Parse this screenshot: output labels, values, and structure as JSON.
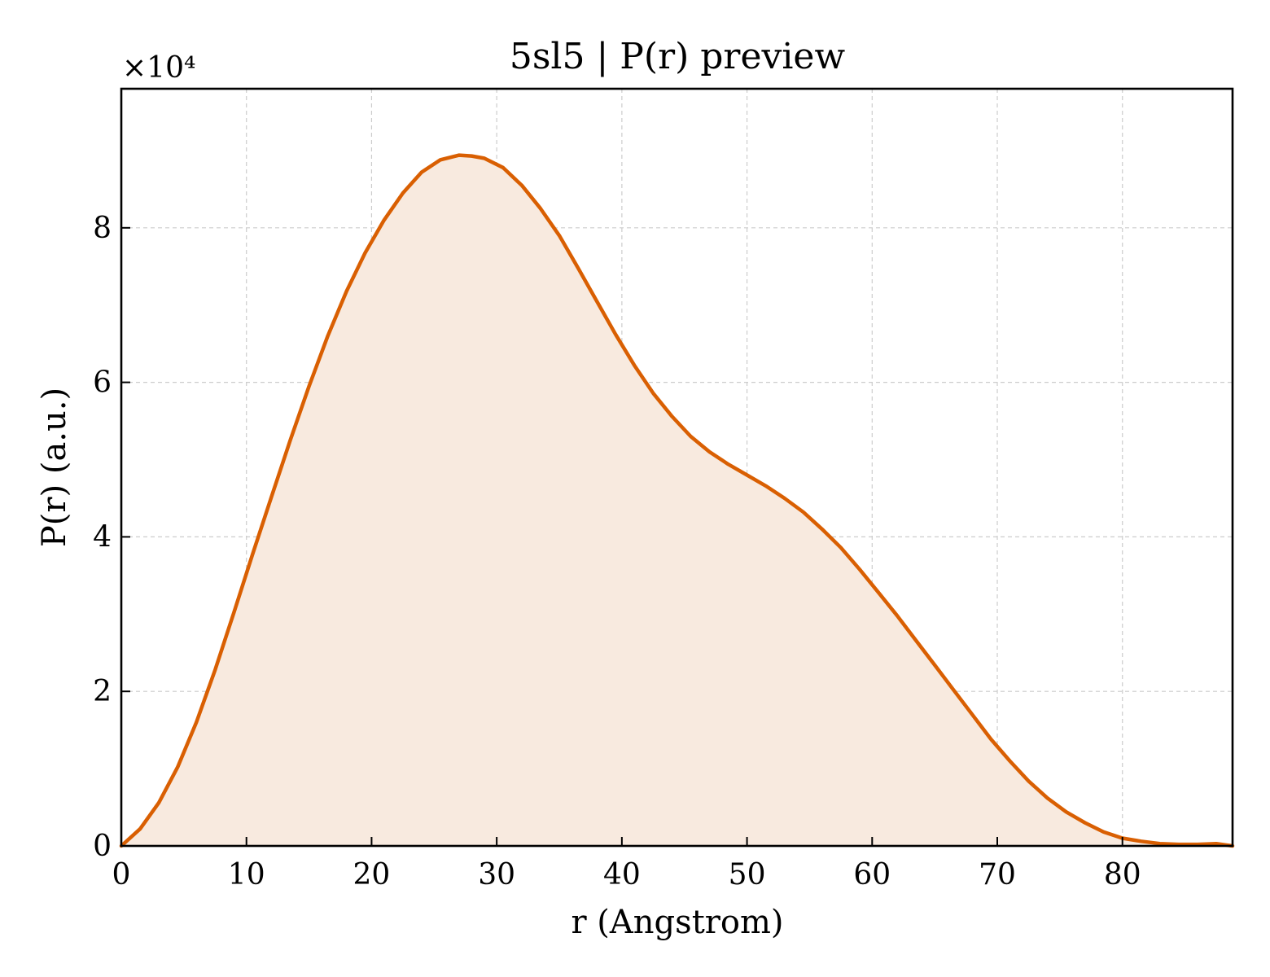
{
  "chart_data": {
    "type": "area",
    "title": "5sl5 | P(r) preview",
    "xlabel": "r (Angstrom)",
    "ylabel": "P(r) (a.u.)",
    "y_multiplier_label": "×10⁴",
    "xlim": [
      0,
      88.8
    ],
    "ylim": [
      0,
      9.8
    ],
    "xticks": [
      0,
      10,
      20,
      30,
      40,
      50,
      60,
      70,
      80
    ],
    "yticks": [
      0,
      2,
      4,
      6,
      8
    ],
    "grid": true,
    "line_color": "#d95f02",
    "fill_color": "#f8eadf",
    "series": [
      {
        "x": [
          0,
          1.5,
          3.0,
          4.5,
          6.0,
          7.5,
          9.0,
          10.5,
          12.0,
          13.5,
          15.0,
          16.5,
          18.0,
          19.5,
          21.0,
          22.5,
          24.0,
          25.5,
          27.0,
          28.0,
          29.0,
          30.5,
          32.0,
          33.5,
          35.0,
          36.5,
          38.0,
          39.5,
          41.0,
          42.5,
          44.0,
          45.5,
          47.0,
          48.5,
          50.0,
          51.5,
          53.0,
          54.5,
          56.0,
          57.5,
          59.0,
          60.5,
          62.0,
          63.5,
          65.0,
          66.5,
          68.0,
          69.5,
          71.0,
          72.5,
          74.0,
          75.5,
          77.0,
          78.5,
          80.0,
          81.5,
          83.0,
          84.5,
          86.0,
          87.5,
          88.8
        ],
        "y": [
          0.0,
          0.22,
          0.56,
          1.02,
          1.6,
          2.28,
          3.02,
          3.78,
          4.52,
          5.25,
          5.95,
          6.6,
          7.18,
          7.68,
          8.1,
          8.45,
          8.72,
          8.88,
          8.94,
          8.93,
          8.9,
          8.78,
          8.55,
          8.25,
          7.9,
          7.48,
          7.05,
          6.62,
          6.22,
          5.86,
          5.56,
          5.3,
          5.1,
          4.94,
          4.8,
          4.66,
          4.5,
          4.32,
          4.1,
          3.86,
          3.58,
          3.28,
          2.98,
          2.66,
          2.34,
          2.02,
          1.7,
          1.38,
          1.1,
          0.84,
          0.62,
          0.44,
          0.3,
          0.18,
          0.1,
          0.06,
          0.03,
          0.02,
          0.02,
          0.03,
          0.0
        ]
      }
    ]
  }
}
